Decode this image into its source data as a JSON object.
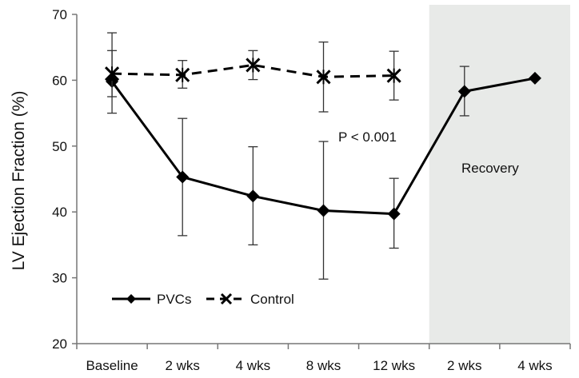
{
  "chart_data": {
    "type": "line",
    "title": "",
    "xlabel": "",
    "ylabel": "LV Ejection Fraction (%)",
    "ylim": [
      20,
      70
    ],
    "yticks": [
      20,
      30,
      40,
      50,
      60,
      70
    ],
    "categories": [
      "Baseline",
      "2 wks",
      "4 wks",
      "8 wks",
      "12 wks",
      "2 wks",
      "4 wks"
    ],
    "shaded_region": {
      "from_category_index": 5,
      "to_category_index": 6,
      "label": "Recovery",
      "color": "#e8eae8"
    },
    "annotation": "P < 0.001",
    "series": [
      {
        "name": "PVCs",
        "style": "solid",
        "marker": "diamond",
        "values": [
          59.8,
          45.3,
          42.4,
          40.2,
          39.7,
          58.3,
          60.3
        ],
        "err_low": [
          55.0,
          36.4,
          35.0,
          29.8,
          34.5,
          54.6,
          null
        ],
        "err_high": [
          64.5,
          54.2,
          49.9,
          50.7,
          45.1,
          62.1,
          null
        ]
      },
      {
        "name": "Control",
        "style": "dashed",
        "marker": "x-star",
        "values": [
          61.0,
          60.8,
          62.3,
          60.5,
          60.7,
          null,
          null
        ],
        "err_low": [
          57.5,
          58.8,
          60.1,
          55.2,
          57.0,
          null,
          null
        ],
        "err_high": [
          67.2,
          63.0,
          64.5,
          65.8,
          64.4,
          null,
          null
        ]
      }
    ],
    "legend_position": "bottom-left",
    "colors": {
      "line": "#000000",
      "axis": "#777777",
      "shade": "#e8eae8"
    }
  }
}
